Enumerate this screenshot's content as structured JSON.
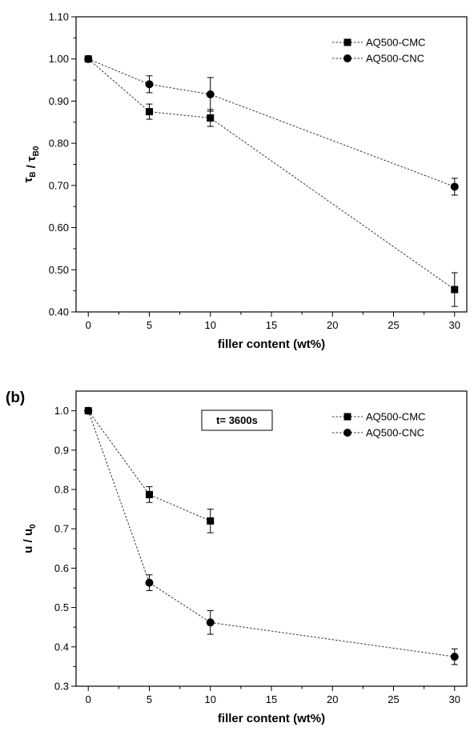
{
  "chart_data": [
    {
      "type": "line",
      "panel_label": "",
      "xlabel": "filler content (wt%)",
      "ylabel": {
        "main": "τ",
        "sub": "B",
        "sep": " / ",
        "main2": "τ",
        "sub2": "B0"
      },
      "xlim": [
        -1,
        31
      ],
      "ylim": [
        0.4,
        1.1
      ],
      "xticks": [
        0,
        5,
        10,
        15,
        20,
        25,
        30
      ],
      "yticks": [
        0.4,
        0.5,
        0.6,
        0.7,
        0.8,
        0.9,
        1.0,
        1.1
      ],
      "ytick_decimals": 2,
      "legend_position": "top-right",
      "grid": false,
      "series": [
        {
          "name": "AQ500-CMC",
          "marker": "square",
          "x": [
            0,
            5,
            10,
            30
          ],
          "y": [
            1.0,
            0.875,
            0.86,
            0.453
          ],
          "err": [
            0,
            0.018,
            0.02,
            0.04
          ]
        },
        {
          "name": "AQ500-CNC",
          "marker": "circle",
          "x": [
            0,
            5,
            10,
            30
          ],
          "y": [
            1.0,
            0.94,
            0.916,
            0.697
          ],
          "err": [
            0,
            0.02,
            0.04,
            0.02
          ]
        }
      ]
    },
    {
      "type": "line",
      "panel_label": "(b)",
      "xlabel": "filler content (wt%)",
      "ylabel": {
        "main": "u",
        "sub": "",
        "sep": " / ",
        "main2": "u",
        "sub2": "0"
      },
      "xlim": [
        -1,
        31
      ],
      "ylim": [
        0.3,
        1.05
      ],
      "xticks": [
        0,
        5,
        10,
        15,
        20,
        25,
        30
      ],
      "yticks": [
        0.3,
        0.4,
        0.5,
        0.6,
        0.7,
        0.8,
        0.9,
        1.0
      ],
      "ytick_decimals": 1,
      "legend_position": "top-right",
      "grid": false,
      "annotation": "t= 3600s",
      "series": [
        {
          "name": "AQ500-CMC",
          "marker": "square",
          "x": [
            0,
            5,
            10
          ],
          "y": [
            1.0,
            0.787,
            0.72
          ],
          "err": [
            0,
            0.02,
            0.03
          ]
        },
        {
          "name": "AQ500-CNC",
          "marker": "circle",
          "x": [
            0,
            5,
            10,
            30
          ],
          "y": [
            1.0,
            0.563,
            0.462,
            0.375
          ],
          "err": [
            0,
            0.02,
            0.03,
            0.02
          ]
        }
      ]
    }
  ]
}
